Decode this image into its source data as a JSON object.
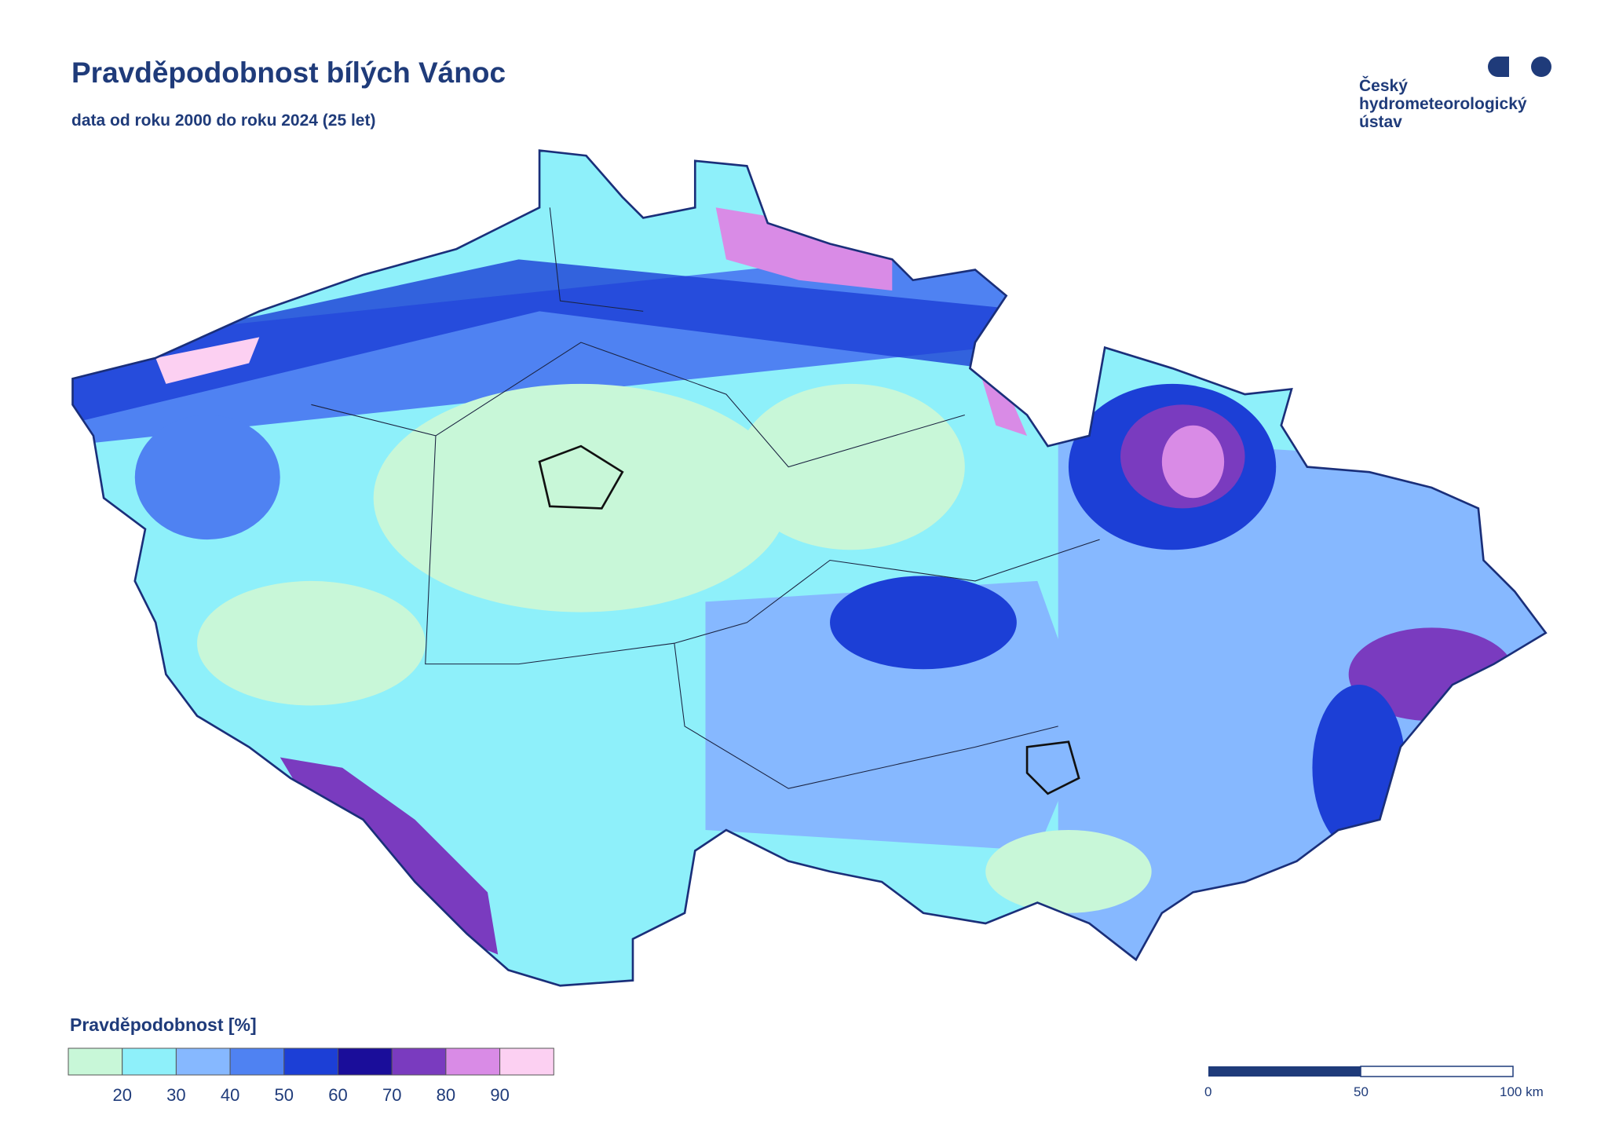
{
  "header": {
    "title": "Pravděpodobnost bílých Vánoc",
    "subtitle": "data od roku 2000 do roku 2024 (25 let)"
  },
  "logo": {
    "lines": [
      "Český",
      "hydrometeorologický",
      "ústav"
    ]
  },
  "legend": {
    "title": "Pravděpodobnost [%]",
    "colors": [
      "#c8f7d8",
      "#8ef0fa",
      "#86b8ff",
      "#4f82f2",
      "#1c3fd6",
      "#1a0d9a",
      "#7a3bbf",
      "#d98be6",
      "#fcd0f2"
    ],
    "ticks": [
      20,
      30,
      40,
      50,
      60,
      70,
      80,
      90
    ]
  },
  "scale_bar": {
    "labels": [
      "0",
      "50",
      "100 km"
    ]
  }
}
